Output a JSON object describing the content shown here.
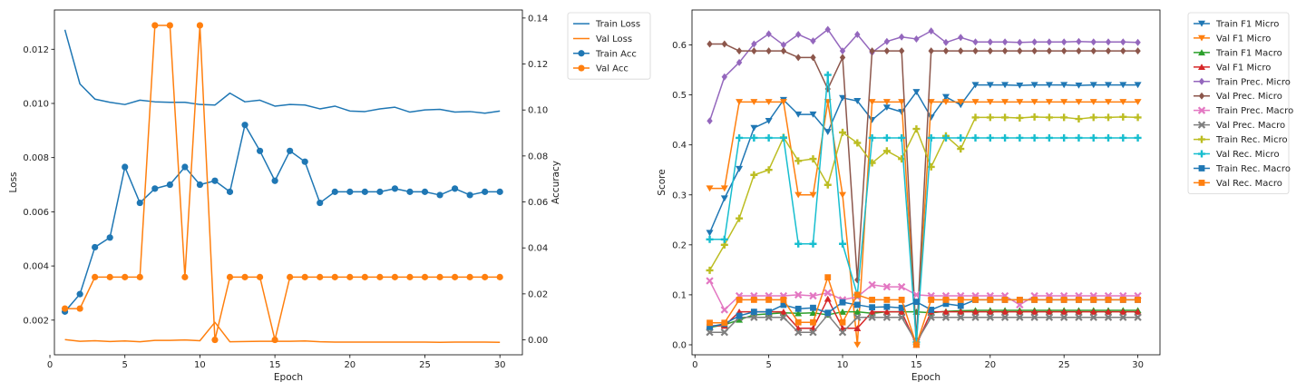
{
  "chart_data": [
    {
      "type": "line",
      "xlabel": "Epoch",
      "ylabel": "Loss",
      "y2label": "Accuracy",
      "xlim": [
        0.3,
        31.5
      ],
      "ylim": [
        0.00072,
        0.01345
      ],
      "y2lim": [
        -0.0065,
        0.1435
      ],
      "xticks": [
        0,
        5,
        10,
        15,
        20,
        25,
        30
      ],
      "yticks": [
        0.002,
        0.004,
        0.006,
        0.008,
        0.01,
        0.012
      ],
      "ytick_labels": [
        "0.002",
        "0.004",
        "0.006",
        "0.008",
        "0.010",
        "0.012"
      ],
      "y2ticks": [
        0.0,
        0.02,
        0.04,
        0.06,
        0.08,
        0.1,
        0.12,
        0.14
      ],
      "y2tick_labels": [
        "0.00",
        "0.02",
        "0.04",
        "0.06",
        "0.08",
        "0.10",
        "0.12",
        "0.14"
      ],
      "grid": false,
      "legend_position": "outside-top-right",
      "x": [
        1,
        2,
        3,
        4,
        5,
        6,
        7,
        8,
        9,
        10,
        11,
        12,
        13,
        14,
        15,
        16,
        17,
        18,
        19,
        20,
        21,
        22,
        23,
        24,
        25,
        26,
        27,
        28,
        29,
        30
      ],
      "series": [
        {
          "name": "Train Loss",
          "axis": "left",
          "color": "#1f77b4",
          "marker": "none",
          "values": [
            0.01272,
            0.01072,
            0.01016,
            0.01004,
            0.00996,
            0.01012,
            0.01006,
            0.01004,
            0.01004,
            0.00996,
            0.00994,
            0.01038,
            0.01006,
            0.01012,
            0.0099,
            0.00996,
            0.00994,
            0.0098,
            0.0099,
            0.00972,
            0.0097,
            0.0098,
            0.00986,
            0.00968,
            0.00976,
            0.00978,
            0.00968,
            0.0097,
            0.00964,
            0.00972
          ]
        },
        {
          "name": "Val Loss",
          "axis": "left",
          "color": "#ff7f0e",
          "marker": "none",
          "values": [
            0.00128,
            0.00122,
            0.00124,
            0.00121,
            0.00123,
            0.0012,
            0.00125,
            0.00125,
            0.00127,
            0.00124,
            0.00192,
            0.0012,
            0.00121,
            0.00122,
            0.00122,
            0.00122,
            0.00123,
            0.0012,
            0.00119,
            0.00119,
            0.00119,
            0.00119,
            0.00119,
            0.00119,
            0.00119,
            0.00118,
            0.00119,
            0.00119,
            0.00119,
            0.00118
          ]
        },
        {
          "name": "Train Acc",
          "axis": "right",
          "color": "#1f77b4",
          "marker": "circle",
          "values": [
            0.0123,
            0.0199,
            0.0403,
            0.0445,
            0.0752,
            0.0596,
            0.0658,
            0.0675,
            0.0752,
            0.0675,
            0.0692,
            0.0644,
            0.0935,
            0.0822,
            0.0692,
            0.0822,
            0.0775,
            0.0596,
            0.0644,
            0.0644,
            0.0644,
            0.0644,
            0.0658,
            0.0644,
            0.0644,
            0.063,
            0.0658,
            0.063,
            0.0644,
            0.0644
          ]
        },
        {
          "name": "Val Acc",
          "axis": "right",
          "color": "#ff7f0e",
          "marker": "circle",
          "values": [
            0.0136,
            0.0136,
            0.0273,
            0.0273,
            0.0273,
            0.0273,
            0.1368,
            0.1368,
            0.0273,
            0.1368,
            0.0,
            0.0273,
            0.0273,
            0.0273,
            0.0,
            0.0273,
            0.0273,
            0.0273,
            0.0273,
            0.0273,
            0.0273,
            0.0273,
            0.0273,
            0.0273,
            0.0273,
            0.0273,
            0.0273,
            0.0273,
            0.0273,
            0.0273
          ]
        }
      ]
    },
    {
      "type": "line",
      "xlabel": "Epoch",
      "ylabel": "Score",
      "xlim": [
        -0.2,
        31.5
      ],
      "ylim": [
        -0.02,
        0.67
      ],
      "xticks": [
        0,
        5,
        10,
        15,
        20,
        25,
        30
      ],
      "yticks": [
        0.0,
        0.1,
        0.2,
        0.3,
        0.4,
        0.5,
        0.6
      ],
      "ytick_labels": [
        "0.0",
        "0.1",
        "0.2",
        "0.3",
        "0.4",
        "0.5",
        "0.6"
      ],
      "grid": false,
      "legend_position": "outside-top-right",
      "x": [
        1,
        2,
        3,
        4,
        5,
        6,
        7,
        8,
        9,
        10,
        11,
        12,
        13,
        14,
        15,
        16,
        17,
        18,
        19,
        20,
        21,
        22,
        23,
        24,
        25,
        26,
        27,
        28,
        29,
        30
      ],
      "series": [
        {
          "name": "Train F1 Micro",
          "color": "#1f77b4",
          "marker": "triangle-down",
          "values": [
            0.224,
            0.293,
            0.352,
            0.434,
            0.448,
            0.49,
            0.461,
            0.461,
            0.426,
            0.494,
            0.488,
            0.45,
            0.475,
            0.466,
            0.506,
            0.455,
            0.496,
            0.48,
            0.52,
            0.52,
            0.52,
            0.519,
            0.52,
            0.52,
            0.52,
            0.519,
            0.52,
            0.52,
            0.52,
            0.52
          ]
        },
        {
          "name": "Val F1 Micro",
          "color": "#ff7f0e",
          "marker": "triangle-down",
          "values": [
            0.313,
            0.313,
            0.486,
            0.486,
            0.486,
            0.486,
            0.3,
            0.3,
            0.486,
            0.3,
            0.0,
            0.486,
            0.486,
            0.486,
            0.0,
            0.486,
            0.486,
            0.486,
            0.486,
            0.486,
            0.486,
            0.486,
            0.486,
            0.486,
            0.486,
            0.486,
            0.486,
            0.486,
            0.486,
            0.486
          ]
        },
        {
          "name": "Train F1 Macro",
          "color": "#2ca02c",
          "marker": "triangle-up",
          "values": [
            0.035,
            0.04,
            0.05,
            0.06,
            0.062,
            0.064,
            0.063,
            0.064,
            0.06,
            0.066,
            0.066,
            0.063,
            0.066,
            0.066,
            0.066,
            0.064,
            0.067,
            0.068,
            0.069,
            0.069,
            0.069,
            0.069,
            0.069,
            0.069,
            0.069,
            0.069,
            0.069,
            0.069,
            0.069,
            0.069
          ]
        },
        {
          "name": "Val F1 Micro",
          "color": "#d62728",
          "marker": "triangle-up",
          "values": [
            0.038,
            0.038,
            0.066,
            0.066,
            0.066,
            0.066,
            0.033,
            0.033,
            0.092,
            0.033,
            0.033,
            0.066,
            0.066,
            0.066,
            0.0,
            0.066,
            0.066,
            0.066,
            0.066,
            0.066,
            0.066,
            0.066,
            0.066,
            0.066,
            0.066,
            0.066,
            0.066,
            0.066,
            0.066,
            0.066
          ]
        },
        {
          "name": "Train Prec. Micro",
          "color": "#9467bd",
          "marker": "diamond",
          "values": [
            0.448,
            0.536,
            0.565,
            0.602,
            0.622,
            0.6,
            0.621,
            0.608,
            0.631,
            0.588,
            0.621,
            0.585,
            0.607,
            0.616,
            0.612,
            0.628,
            0.605,
            0.615,
            0.606,
            0.606,
            0.606,
            0.605,
            0.606,
            0.606,
            0.606,
            0.607,
            0.606,
            0.606,
            0.606,
            0.605
          ]
        },
        {
          "name": "Val Prec. Micro",
          "color": "#8c564b",
          "marker": "diamond",
          "values": [
            0.602,
            0.602,
            0.588,
            0.588,
            0.588,
            0.588,
            0.575,
            0.575,
            0.512,
            0.575,
            0.13,
            0.588,
            0.588,
            0.588,
            0.01,
            0.588,
            0.588,
            0.588,
            0.588,
            0.588,
            0.588,
            0.588,
            0.588,
            0.588,
            0.588,
            0.588,
            0.588,
            0.588,
            0.588,
            0.588
          ]
        },
        {
          "name": "Train Prec. Macro",
          "color": "#e377c2",
          "marker": "x",
          "values": [
            0.128,
            0.07,
            0.098,
            0.098,
            0.098,
            0.098,
            0.1,
            0.098,
            0.104,
            0.09,
            0.096,
            0.12,
            0.116,
            0.116,
            0.1,
            0.098,
            0.098,
            0.098,
            0.098,
            0.098,
            0.098,
            0.08,
            0.098,
            0.098,
            0.098,
            0.098,
            0.098,
            0.098,
            0.098,
            0.098
          ]
        },
        {
          "name": "Val Prec. Macro",
          "color": "#7f7f7f",
          "marker": "x",
          "values": [
            0.025,
            0.025,
            0.055,
            0.055,
            0.055,
            0.055,
            0.025,
            0.025,
            0.06,
            0.025,
            0.055,
            0.055,
            0.055,
            0.055,
            0.005,
            0.055,
            0.055,
            0.055,
            0.055,
            0.055,
            0.055,
            0.055,
            0.055,
            0.055,
            0.055,
            0.055,
            0.055,
            0.055,
            0.055,
            0.055
          ]
        },
        {
          "name": "Train Rec. Micro",
          "color": "#bcbd22",
          "marker": "plus",
          "values": [
            0.149,
            0.2,
            0.253,
            0.34,
            0.35,
            0.415,
            0.368,
            0.372,
            0.32,
            0.425,
            0.404,
            0.364,
            0.388,
            0.372,
            0.432,
            0.356,
            0.418,
            0.392,
            0.455,
            0.455,
            0.455,
            0.454,
            0.456,
            0.455,
            0.455,
            0.452,
            0.455,
            0.455,
            0.456,
            0.455
          ]
        },
        {
          "name": "Val Rec. Micro",
          "color": "#17becf",
          "marker": "plus",
          "values": [
            0.211,
            0.211,
            0.414,
            0.414,
            0.414,
            0.414,
            0.202,
            0.202,
            0.54,
            0.202,
            0.1,
            0.414,
            0.414,
            0.414,
            0.005,
            0.414,
            0.414,
            0.414,
            0.414,
            0.414,
            0.414,
            0.414,
            0.414,
            0.414,
            0.414,
            0.414,
            0.414,
            0.414,
            0.414,
            0.414
          ]
        },
        {
          "name": "Train Rec. Macro",
          "color": "#1f77b4",
          "marker": "square",
          "values": [
            0.036,
            0.042,
            0.058,
            0.066,
            0.066,
            0.08,
            0.072,
            0.074,
            0.064,
            0.085,
            0.08,
            0.075,
            0.076,
            0.074,
            0.086,
            0.07,
            0.082,
            0.078,
            0.09,
            0.09,
            0.09,
            0.09,
            0.09,
            0.09,
            0.09,
            0.09,
            0.09,
            0.09,
            0.09,
            0.09
          ]
        },
        {
          "name": "Val Rec. Macro",
          "color": "#ff7f0e",
          "marker": "square",
          "values": [
            0.044,
            0.044,
            0.09,
            0.09,
            0.09,
            0.09,
            0.045,
            0.045,
            0.135,
            0.045,
            0.1,
            0.09,
            0.09,
            0.09,
            0.0,
            0.09,
            0.09,
            0.09,
            0.09,
            0.09,
            0.09,
            0.09,
            0.09,
            0.09,
            0.09,
            0.09,
            0.09,
            0.09,
            0.09,
            0.09
          ]
        }
      ]
    }
  ]
}
